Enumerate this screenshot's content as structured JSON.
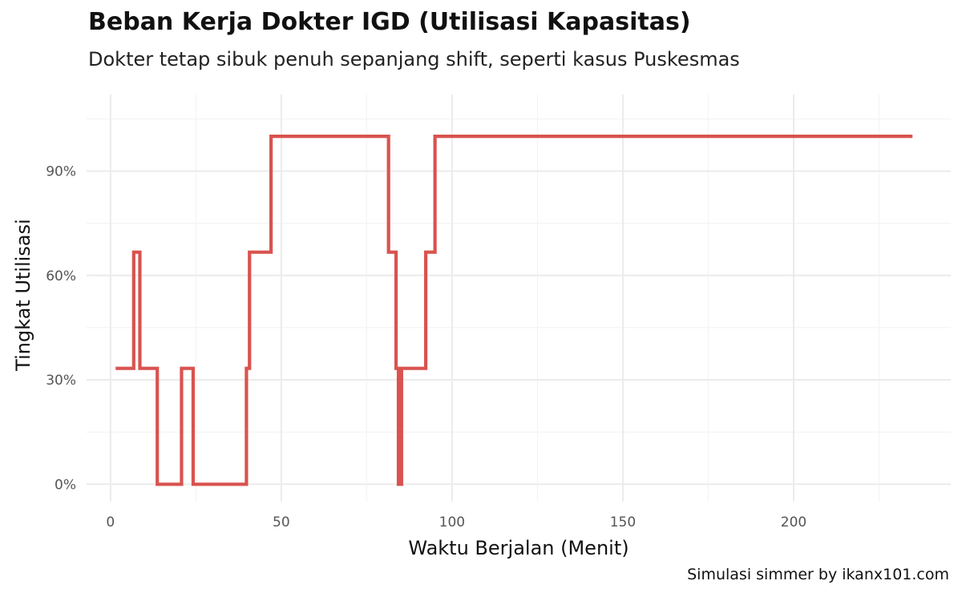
{
  "chart_data": {
    "type": "line",
    "step": true,
    "title": "Beban Kerja Dokter IGD (Utilisasi Kapasitas)",
    "subtitle": "Dokter tetap sibuk penuh sepanjang shift, seperti kasus Puskesmas",
    "caption": "Simulasi simmer by ikanx101.com",
    "xlabel": "Waktu Berjalan (Menit)",
    "ylabel": "Tingkat Utilisasi",
    "xlim": [
      -7,
      246
    ],
    "ylim": [
      -5,
      112
    ],
    "x_ticks": [
      0,
      50,
      100,
      150,
      200
    ],
    "x_tick_labels": [
      "0",
      "50",
      "100",
      "150",
      "200"
    ],
    "y_ticks": [
      0,
      30,
      60,
      90
    ],
    "y_tick_labels": [
      "0%",
      "30%",
      "60%",
      "90%"
    ],
    "grid": true,
    "line_color": "#d9534f",
    "series": [
      {
        "x": [
          1.5,
          6.8,
          8.6,
          13.7,
          20.8,
          24.2,
          39.8,
          40.7,
          43.9,
          47.0,
          81.4,
          83.6,
          84.3,
          84.6,
          84.9,
          85.2,
          92.3,
          95.0,
          234.8
        ],
        "y": [
          33.3,
          66.7,
          33.3,
          0,
          33.3,
          0,
          33.3,
          66.7,
          66.7,
          100,
          66.7,
          33.3,
          0,
          33.3,
          0,
          33.3,
          66.7,
          100,
          100
        ]
      }
    ]
  }
}
